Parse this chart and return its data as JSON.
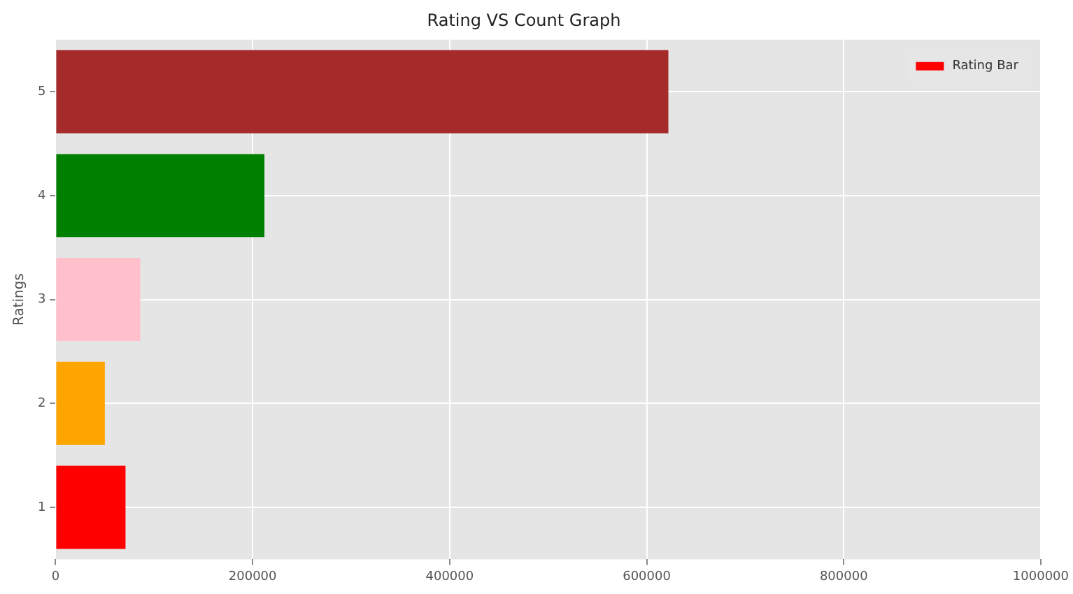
{
  "chart_data": {
    "type": "bar",
    "title": "Rating VS Count Graph",
    "ylabel": "Ratings",
    "orientation": "horizontal",
    "categories": [
      "5",
      "4",
      "3",
      "2",
      "1"
    ],
    "series": [
      {
        "name": "Rating Bar",
        "color": "#ff0000",
        "colors": [
          "#a52a2a",
          "#008000",
          "#ffc0cb",
          "#ffa500",
          "#ff0000"
        ],
        "values": [
          622000,
          212000,
          86000,
          50000,
          71000
        ]
      }
    ],
    "xlim": [
      0,
      1000000
    ],
    "xticks": [
      0,
      200000,
      400000,
      600000,
      800000,
      1000000
    ],
    "grid": true,
    "legend": "top right"
  }
}
